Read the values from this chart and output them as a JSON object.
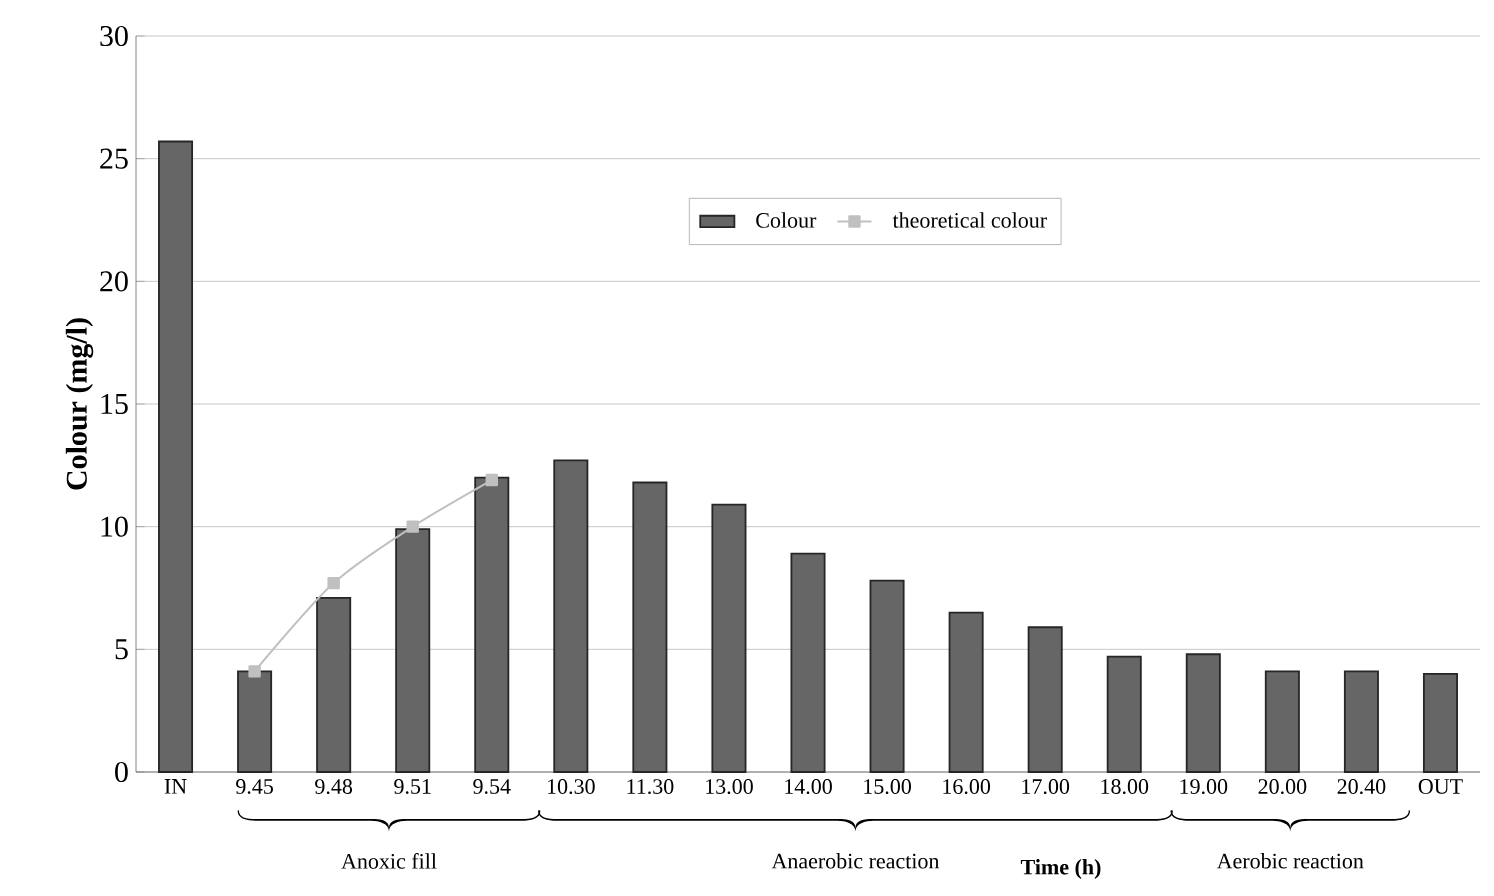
{
  "chart_data": {
    "type": "bar",
    "xlabel": "Time (h)",
    "ylabel": "Colour (mg/l)",
    "categories": [
      "IN",
      "9.45",
      "9.48",
      "9.51",
      "9.54",
      "10.30",
      "11.30",
      "13.00",
      "14.00",
      "15.00",
      "16.00",
      "17.00",
      "18.00",
      "19.00",
      "20.00",
      "20.40",
      "OUT"
    ],
    "series": [
      {
        "name": "Colour",
        "color": "#666666",
        "values": [
          25.7,
          4.1,
          7.1,
          9.9,
          12.0,
          12.7,
          11.8,
          10.9,
          8.9,
          7.8,
          6.5,
          5.9,
          4.7,
          4.8,
          4.1,
          4.1,
          4.0
        ]
      },
      {
        "name": "theoretical colour",
        "type": "line",
        "color": "#c0c0c0",
        "marker": "square",
        "values": [
          null,
          4.1,
          7.7,
          10.0,
          11.9,
          null,
          null,
          null,
          null,
          null,
          null,
          null,
          null,
          null,
          null,
          null,
          null
        ]
      }
    ],
    "ylim": [
      0,
      30
    ],
    "yticks": [
      0,
      5,
      10,
      15,
      20,
      25,
      30
    ],
    "grid": "y",
    "legend": "top",
    "annotations": [
      "Anoxic fill",
      "Anaerobic reaction",
      "Aerobic reaction"
    ]
  }
}
